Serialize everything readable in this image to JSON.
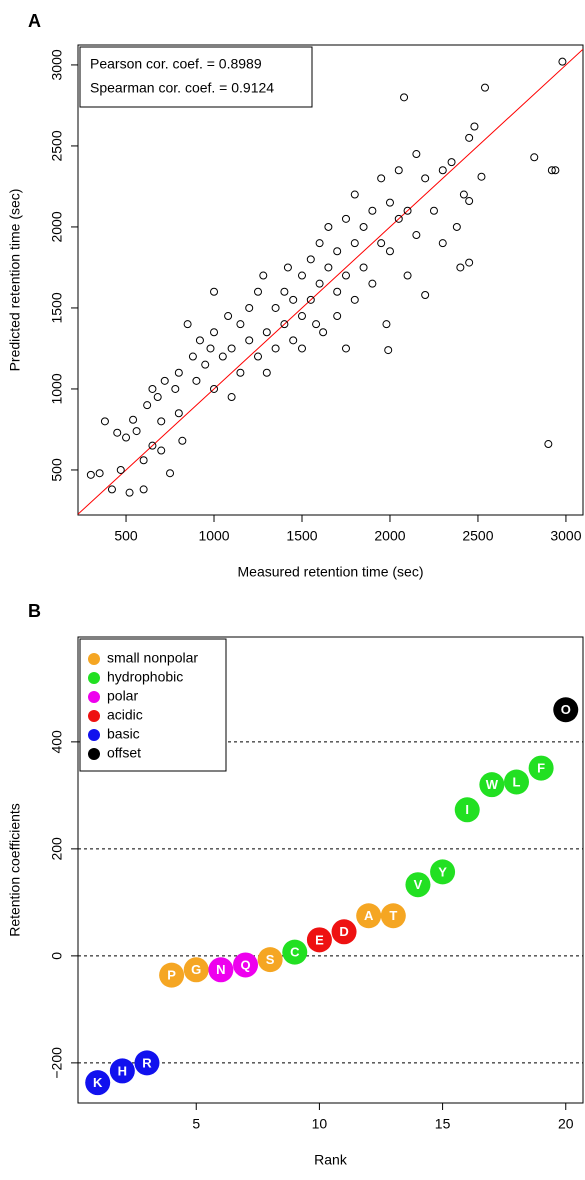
{
  "chart_data": [
    {
      "type": "scatter",
      "label": "A",
      "xlabel": "Measured retention time (sec)",
      "ylabel": "Predicted retention time (sec)",
      "annotations": [
        "Pearson cor. coef. = 0.8989",
        "Spearman cor. coef. = 0.9124"
      ],
      "x": [
        300,
        350,
        380,
        420,
        450,
        470,
        500,
        520,
        540,
        560,
        600,
        600,
        620,
        650,
        680,
        700,
        720,
        750,
        780,
        800,
        800,
        820,
        850,
        880,
        900,
        920,
        950,
        980,
        1000,
        1000,
        1050,
        1080,
        1100,
        1100,
        1150,
        1150,
        1200,
        1200,
        1250,
        1250,
        1280,
        1300,
        1300,
        1350,
        1350,
        1400,
        1400,
        1420,
        1450,
        1450,
        1500,
        1500,
        1500,
        1550,
        1550,
        1580,
        1600,
        1600,
        1620,
        1650,
        1650,
        1700,
        1700,
        1700,
        1750,
        1750,
        1800,
        1800,
        1800,
        1850,
        1850,
        1900,
        1900,
        1950,
        1950,
        1980,
        1990,
        2000,
        2000,
        2050,
        2050,
        2080,
        2100,
        2100,
        2150,
        2150,
        2200,
        2200,
        2250,
        2300,
        2300,
        2350,
        2380,
        2400,
        2420,
        2450,
        2450,
        2450,
        2480,
        2520,
        2540,
        2820,
        2900,
        2920,
        2940,
        2980,
        650,
        700,
        1000,
        1750
      ],
      "values": [
        470,
        480,
        800,
        380,
        730,
        500,
        700,
        360,
        810,
        740,
        560,
        380,
        900,
        1000,
        950,
        800,
        1050,
        480,
        1000,
        1100,
        850,
        680,
        1400,
        1200,
        1050,
        1300,
        1150,
        1250,
        1350,
        1000,
        1200,
        1450,
        950,
        1250,
        1400,
        1100,
        1300,
        1500,
        1200,
        1600,
        1700,
        1350,
        1100,
        1500,
        1250,
        1600,
        1400,
        1750,
        1300,
        1550,
        1450,
        1700,
        1250,
        1800,
        1550,
        1400,
        1650,
        1900,
        1350,
        1750,
        2000,
        1600,
        1850,
        1450,
        2050,
        1700,
        1900,
        1550,
        2200,
        2000,
        1750,
        2100,
        1650,
        2300,
        1900,
        1400,
        1240,
        2150,
        1850,
        2050,
        2350,
        2800,
        1700,
        2100,
        2450,
        1950,
        2300,
        1580,
        2100,
        2350,
        1900,
        2400,
        2000,
        1750,
        2200,
        2550,
        1780,
        2160,
        2620,
        2310,
        2860,
        2430,
        660,
        2350,
        2350,
        3020,
        650,
        620,
        1600,
        1250
      ],
      "color": "#000000",
      "identity_line": true,
      "identity_line_color": "#ff0000",
      "xlim": [
        227,
        3097
      ],
      "ylim": [
        222,
        3123
      ],
      "xticks": [
        500,
        1000,
        1500,
        2000,
        2500,
        3000
      ],
      "yticks": [
        500,
        1000,
        1500,
        2000,
        2500,
        3000
      ],
      "grid": false
    },
    {
      "type": "scatter",
      "label": "B",
      "xlabel": "Rank",
      "ylabel": "Retention coefficients",
      "legend": "top-left",
      "series": [
        {
          "name": "small nonpolar",
          "color": "#f5a623",
          "x": [
            4,
            5,
            8,
            12,
            13
          ],
          "values": [
            -36,
            -26,
            -7,
            75,
            75
          ],
          "labels": [
            "P",
            "G",
            "S",
            "A",
            "T"
          ]
        },
        {
          "name": "hydrophobic",
          "color": "#22e022",
          "x": [
            9,
            14,
            15,
            16,
            17,
            18,
            19
          ],
          "values": [
            7,
            133,
            157,
            273,
            320,
            325,
            351
          ],
          "labels": [
            "C",
            "V",
            "Y",
            "I",
            "W",
            "L",
            "F"
          ]
        },
        {
          "name": "polar",
          "color": "#ee00ee",
          "x": [
            6,
            7
          ],
          "values": [
            -26,
            -17
          ],
          "labels": [
            "N",
            "Q"
          ]
        },
        {
          "name": "acidic",
          "color": "#ee1111",
          "x": [
            10,
            11
          ],
          "values": [
            30,
            45
          ],
          "labels": [
            "E",
            "D"
          ]
        },
        {
          "name": "basic",
          "color": "#1111ee",
          "x": [
            1,
            2,
            3
          ],
          "values": [
            -237,
            -215,
            -200
          ],
          "labels": [
            "K",
            "H",
            "R"
          ]
        },
        {
          "name": "offset",
          "color": "#000000",
          "x": [
            20
          ],
          "values": [
            460
          ],
          "labels": [
            "O"
          ]
        }
      ],
      "xlim": [
        0.2,
        20.7
      ],
      "ylim": [
        -275,
        596
      ],
      "xticks": [
        5,
        10,
        15,
        20
      ],
      "yticks": [
        {
          "value": -200,
          "label": "−200"
        },
        0,
        200,
        400
      ],
      "grid": true
    }
  ]
}
